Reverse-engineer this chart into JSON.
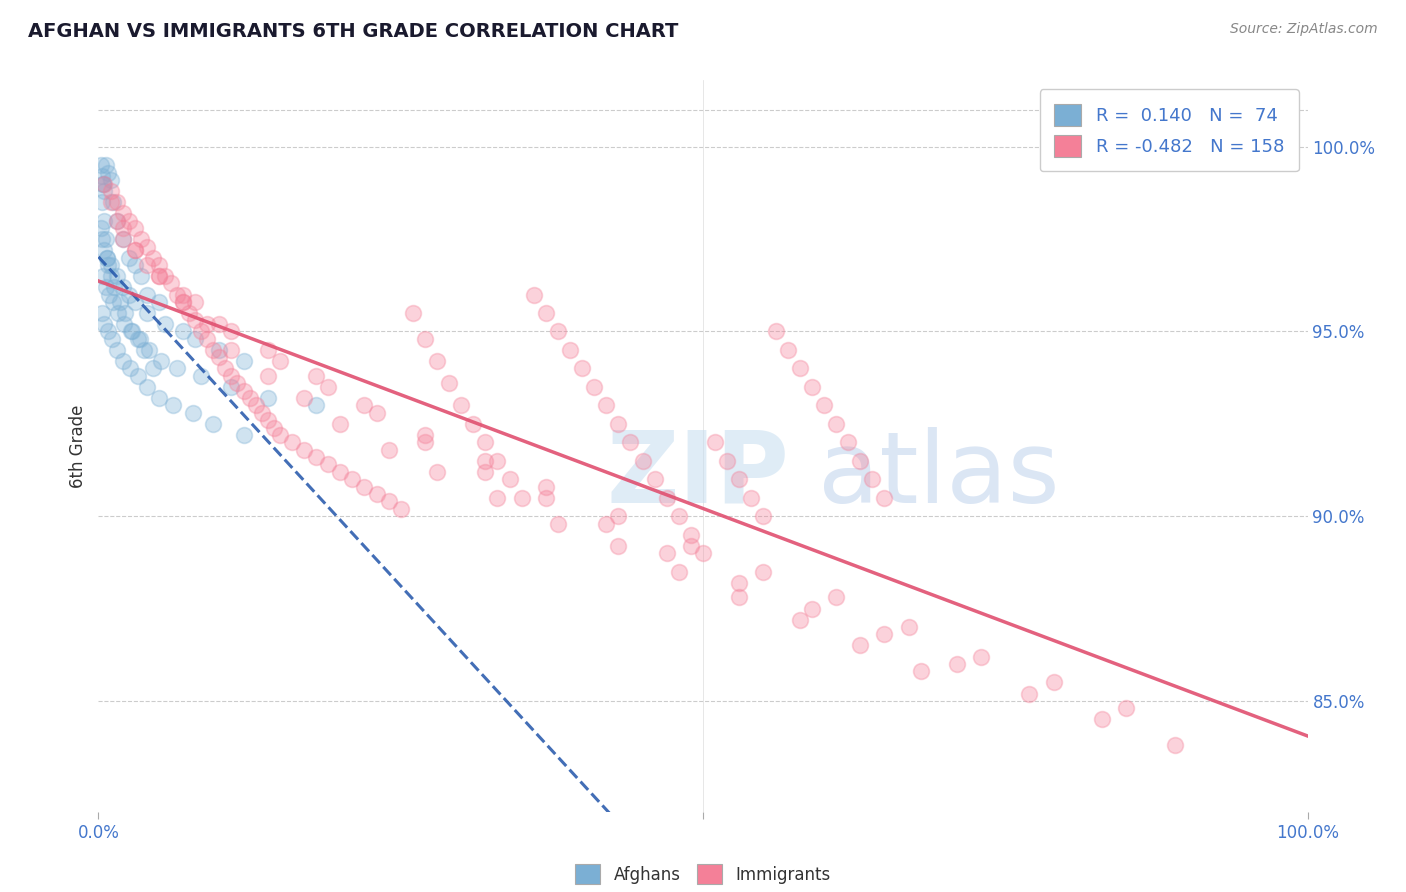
{
  "title": "AFGHAN VS IMMIGRANTS 6TH GRADE CORRELATION CHART",
  "source": "Source: ZipAtlas.com",
  "ylabel": "6th Grade",
  "right_yticks": [
    85.0,
    90.0,
    95.0,
    100.0
  ],
  "right_ytick_labels": [
    "85.0%",
    "90.0%",
    "95.0%",
    "100.0%"
  ],
  "blue_color": "#7bafd4",
  "pink_color": "#f48098",
  "blue_line_color": "#2255aa",
  "pink_line_color": "#e05070",
  "title_color": "#1a1a2e",
  "tick_color": "#4477cc",
  "background_color": "#ffffff",
  "grid_color": "#cccccc",
  "afghans_x": [
    0.2,
    0.3,
    0.4,
    0.5,
    0.6,
    0.8,
    1.0,
    1.2,
    1.5,
    2.0,
    2.5,
    3.0,
    3.5,
    4.0,
    5.0,
    0.3,
    0.4,
    0.5,
    0.6,
    0.7,
    0.8,
    1.0,
    1.3,
    1.8,
    2.2,
    2.8,
    3.3,
    3.8,
    4.5,
    0.2,
    0.3,
    0.5,
    0.7,
    1.0,
    1.5,
    2.0,
    2.5,
    3.0,
    4.0,
    5.5,
    7.0,
    8.0,
    10.0,
    12.0,
    0.4,
    0.6,
    0.9,
    1.2,
    1.6,
    2.1,
    2.7,
    3.4,
    4.2,
    5.2,
    6.5,
    8.5,
    11.0,
    14.0,
    18.0,
    0.3,
    0.5,
    0.8,
    1.1,
    1.5,
    2.0,
    2.6,
    3.3,
    4.0,
    5.0,
    6.2,
    7.8,
    9.5,
    12.0
  ],
  "afghans_y": [
    99.5,
    99.2,
    99.0,
    98.8,
    99.5,
    99.3,
    99.1,
    98.5,
    98.0,
    97.5,
    97.0,
    96.8,
    96.5,
    96.0,
    95.8,
    98.5,
    99.0,
    98.0,
    97.5,
    97.0,
    96.8,
    96.5,
    96.2,
    95.8,
    95.5,
    95.0,
    94.8,
    94.5,
    94.0,
    97.8,
    97.5,
    97.2,
    97.0,
    96.8,
    96.5,
    96.2,
    96.0,
    95.8,
    95.5,
    95.2,
    95.0,
    94.8,
    94.5,
    94.2,
    96.5,
    96.2,
    96.0,
    95.8,
    95.5,
    95.2,
    95.0,
    94.8,
    94.5,
    94.2,
    94.0,
    93.8,
    93.5,
    93.2,
    93.0,
    95.5,
    95.2,
    95.0,
    94.8,
    94.5,
    94.2,
    94.0,
    93.8,
    93.5,
    93.2,
    93.0,
    92.8,
    92.5,
    92.2
  ],
  "immigrants_x": [
    0.5,
    1.0,
    1.5,
    2.0,
    2.5,
    3.0,
    3.5,
    4.0,
    4.5,
    5.0,
    5.5,
    6.0,
    6.5,
    7.0,
    7.5,
    8.0,
    8.5,
    9.0,
    9.5,
    10.0,
    10.5,
    11.0,
    11.5,
    12.0,
    12.5,
    13.0,
    13.5,
    14.0,
    14.5,
    15.0,
    16.0,
    17.0,
    18.0,
    19.0,
    20.0,
    21.0,
    22.0,
    23.0,
    24.0,
    25.0,
    26.0,
    27.0,
    28.0,
    29.0,
    30.0,
    31.0,
    32.0,
    33.0,
    34.0,
    35.0,
    36.0,
    37.0,
    38.0,
    39.0,
    40.0,
    41.0,
    42.0,
    43.0,
    44.0,
    45.0,
    46.0,
    47.0,
    48.0,
    49.0,
    50.0,
    51.0,
    52.0,
    53.0,
    54.0,
    55.0,
    56.0,
    57.0,
    58.0,
    59.0,
    60.0,
    61.0,
    62.0,
    63.0,
    64.0,
    65.0,
    1.0,
    2.0,
    3.0,
    5.0,
    7.0,
    9.0,
    11.0,
    14.0,
    17.0,
    20.0,
    24.0,
    28.0,
    33.0,
    38.0,
    43.0,
    48.0,
    53.0,
    58.0,
    63.0,
    68.0,
    1.5,
    3.0,
    5.0,
    8.0,
    11.0,
    15.0,
    19.0,
    23.0,
    27.0,
    32.0,
    37.0,
    42.0,
    47.0,
    53.0,
    59.0,
    65.0,
    71.0,
    77.0,
    83.0,
    89.0,
    2.0,
    4.0,
    7.0,
    10.0,
    14.0,
    18.0,
    22.0,
    27.0,
    32.0,
    37.0,
    43.0,
    49.0,
    55.0,
    61.0,
    67.0,
    73.0,
    79.0,
    85.0
  ],
  "immigrants_y": [
    99.0,
    98.8,
    98.5,
    98.2,
    98.0,
    97.8,
    97.5,
    97.3,
    97.0,
    96.8,
    96.5,
    96.3,
    96.0,
    95.8,
    95.5,
    95.3,
    95.0,
    94.8,
    94.5,
    94.3,
    94.0,
    93.8,
    93.6,
    93.4,
    93.2,
    93.0,
    92.8,
    92.6,
    92.4,
    92.2,
    92.0,
    91.8,
    91.6,
    91.4,
    91.2,
    91.0,
    90.8,
    90.6,
    90.4,
    90.2,
    95.5,
    94.8,
    94.2,
    93.6,
    93.0,
    92.5,
    92.0,
    91.5,
    91.0,
    90.5,
    96.0,
    95.5,
    95.0,
    94.5,
    94.0,
    93.5,
    93.0,
    92.5,
    92.0,
    91.5,
    91.0,
    90.5,
    90.0,
    89.5,
    89.0,
    92.0,
    91.5,
    91.0,
    90.5,
    90.0,
    95.0,
    94.5,
    94.0,
    93.5,
    93.0,
    92.5,
    92.0,
    91.5,
    91.0,
    90.5,
    98.5,
    97.8,
    97.2,
    96.5,
    95.8,
    95.2,
    94.5,
    93.8,
    93.2,
    92.5,
    91.8,
    91.2,
    90.5,
    89.8,
    89.2,
    88.5,
    87.8,
    87.2,
    86.5,
    85.8,
    98.0,
    97.2,
    96.5,
    95.8,
    95.0,
    94.2,
    93.5,
    92.8,
    92.0,
    91.2,
    90.5,
    89.8,
    89.0,
    88.2,
    87.5,
    86.8,
    86.0,
    85.2,
    84.5,
    83.8,
    97.5,
    96.8,
    96.0,
    95.2,
    94.5,
    93.8,
    93.0,
    92.2,
    91.5,
    90.8,
    90.0,
    89.2,
    88.5,
    87.8,
    87.0,
    86.2,
    85.5,
    84.8
  ]
}
